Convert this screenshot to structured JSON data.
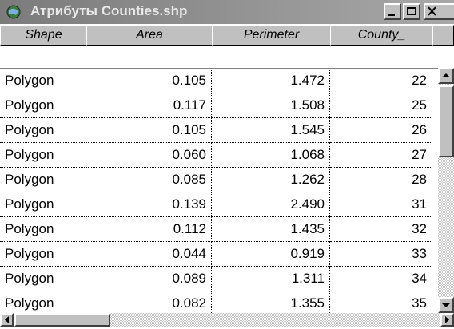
{
  "window": {
    "title": "Атрибуты Counties.shp"
  },
  "table": {
    "columns": [
      "Shape",
      "Area",
      "Perimeter",
      "County_"
    ],
    "rows": [
      [
        "Polygon",
        "0.105",
        "1.472",
        "22"
      ],
      [
        "Polygon",
        "0.117",
        "1.508",
        "25"
      ],
      [
        "Polygon",
        "0.105",
        "1.545",
        "26"
      ],
      [
        "Polygon",
        "0.060",
        "1.068",
        "27"
      ],
      [
        "Polygon",
        "0.085",
        "1.262",
        "28"
      ],
      [
        "Polygon",
        "0.139",
        "2.490",
        "31"
      ],
      [
        "Polygon",
        "0.112",
        "1.435",
        "32"
      ],
      [
        "Polygon",
        "0.044",
        "0.919",
        "33"
      ],
      [
        "Polygon",
        "0.089",
        "1.311",
        "34"
      ],
      [
        "Polygon",
        "0.082",
        "1.355",
        "35"
      ]
    ]
  }
}
